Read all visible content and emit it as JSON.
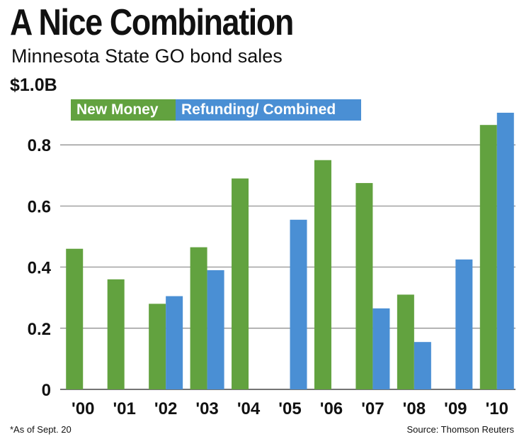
{
  "chart_data": {
    "type": "bar",
    "title": "A Nice Combination",
    "subtitle": "Minnesota State GO bond sales",
    "unit_label": "$1.0B",
    "categories": [
      "'00",
      "'01",
      "'02",
      "'03",
      "'04",
      "'05",
      "'06",
      "'07",
      "'08",
      "'09",
      "'10"
    ],
    "series": [
      {
        "name": "New Money",
        "color": "#62a23f",
        "values": [
          0.46,
          0.36,
          0.28,
          0.465,
          0.69,
          null,
          0.75,
          0.675,
          0.31,
          null,
          0.865
        ]
      },
      {
        "name": "Refunding/ Combined",
        "color": "#4a8fd4",
        "values": [
          null,
          null,
          0.305,
          0.39,
          null,
          0.555,
          null,
          0.265,
          0.155,
          0.425,
          0.905
        ]
      }
    ],
    "yticks": [
      "0",
      "0.2",
      "0.4",
      "0.6",
      "0.8"
    ],
    "ylim": [
      0,
      1.0
    ],
    "grid": true,
    "legend": "top-left",
    "footnote": "*As of Sept. 20",
    "source": "Source: Thomson Reuters"
  }
}
